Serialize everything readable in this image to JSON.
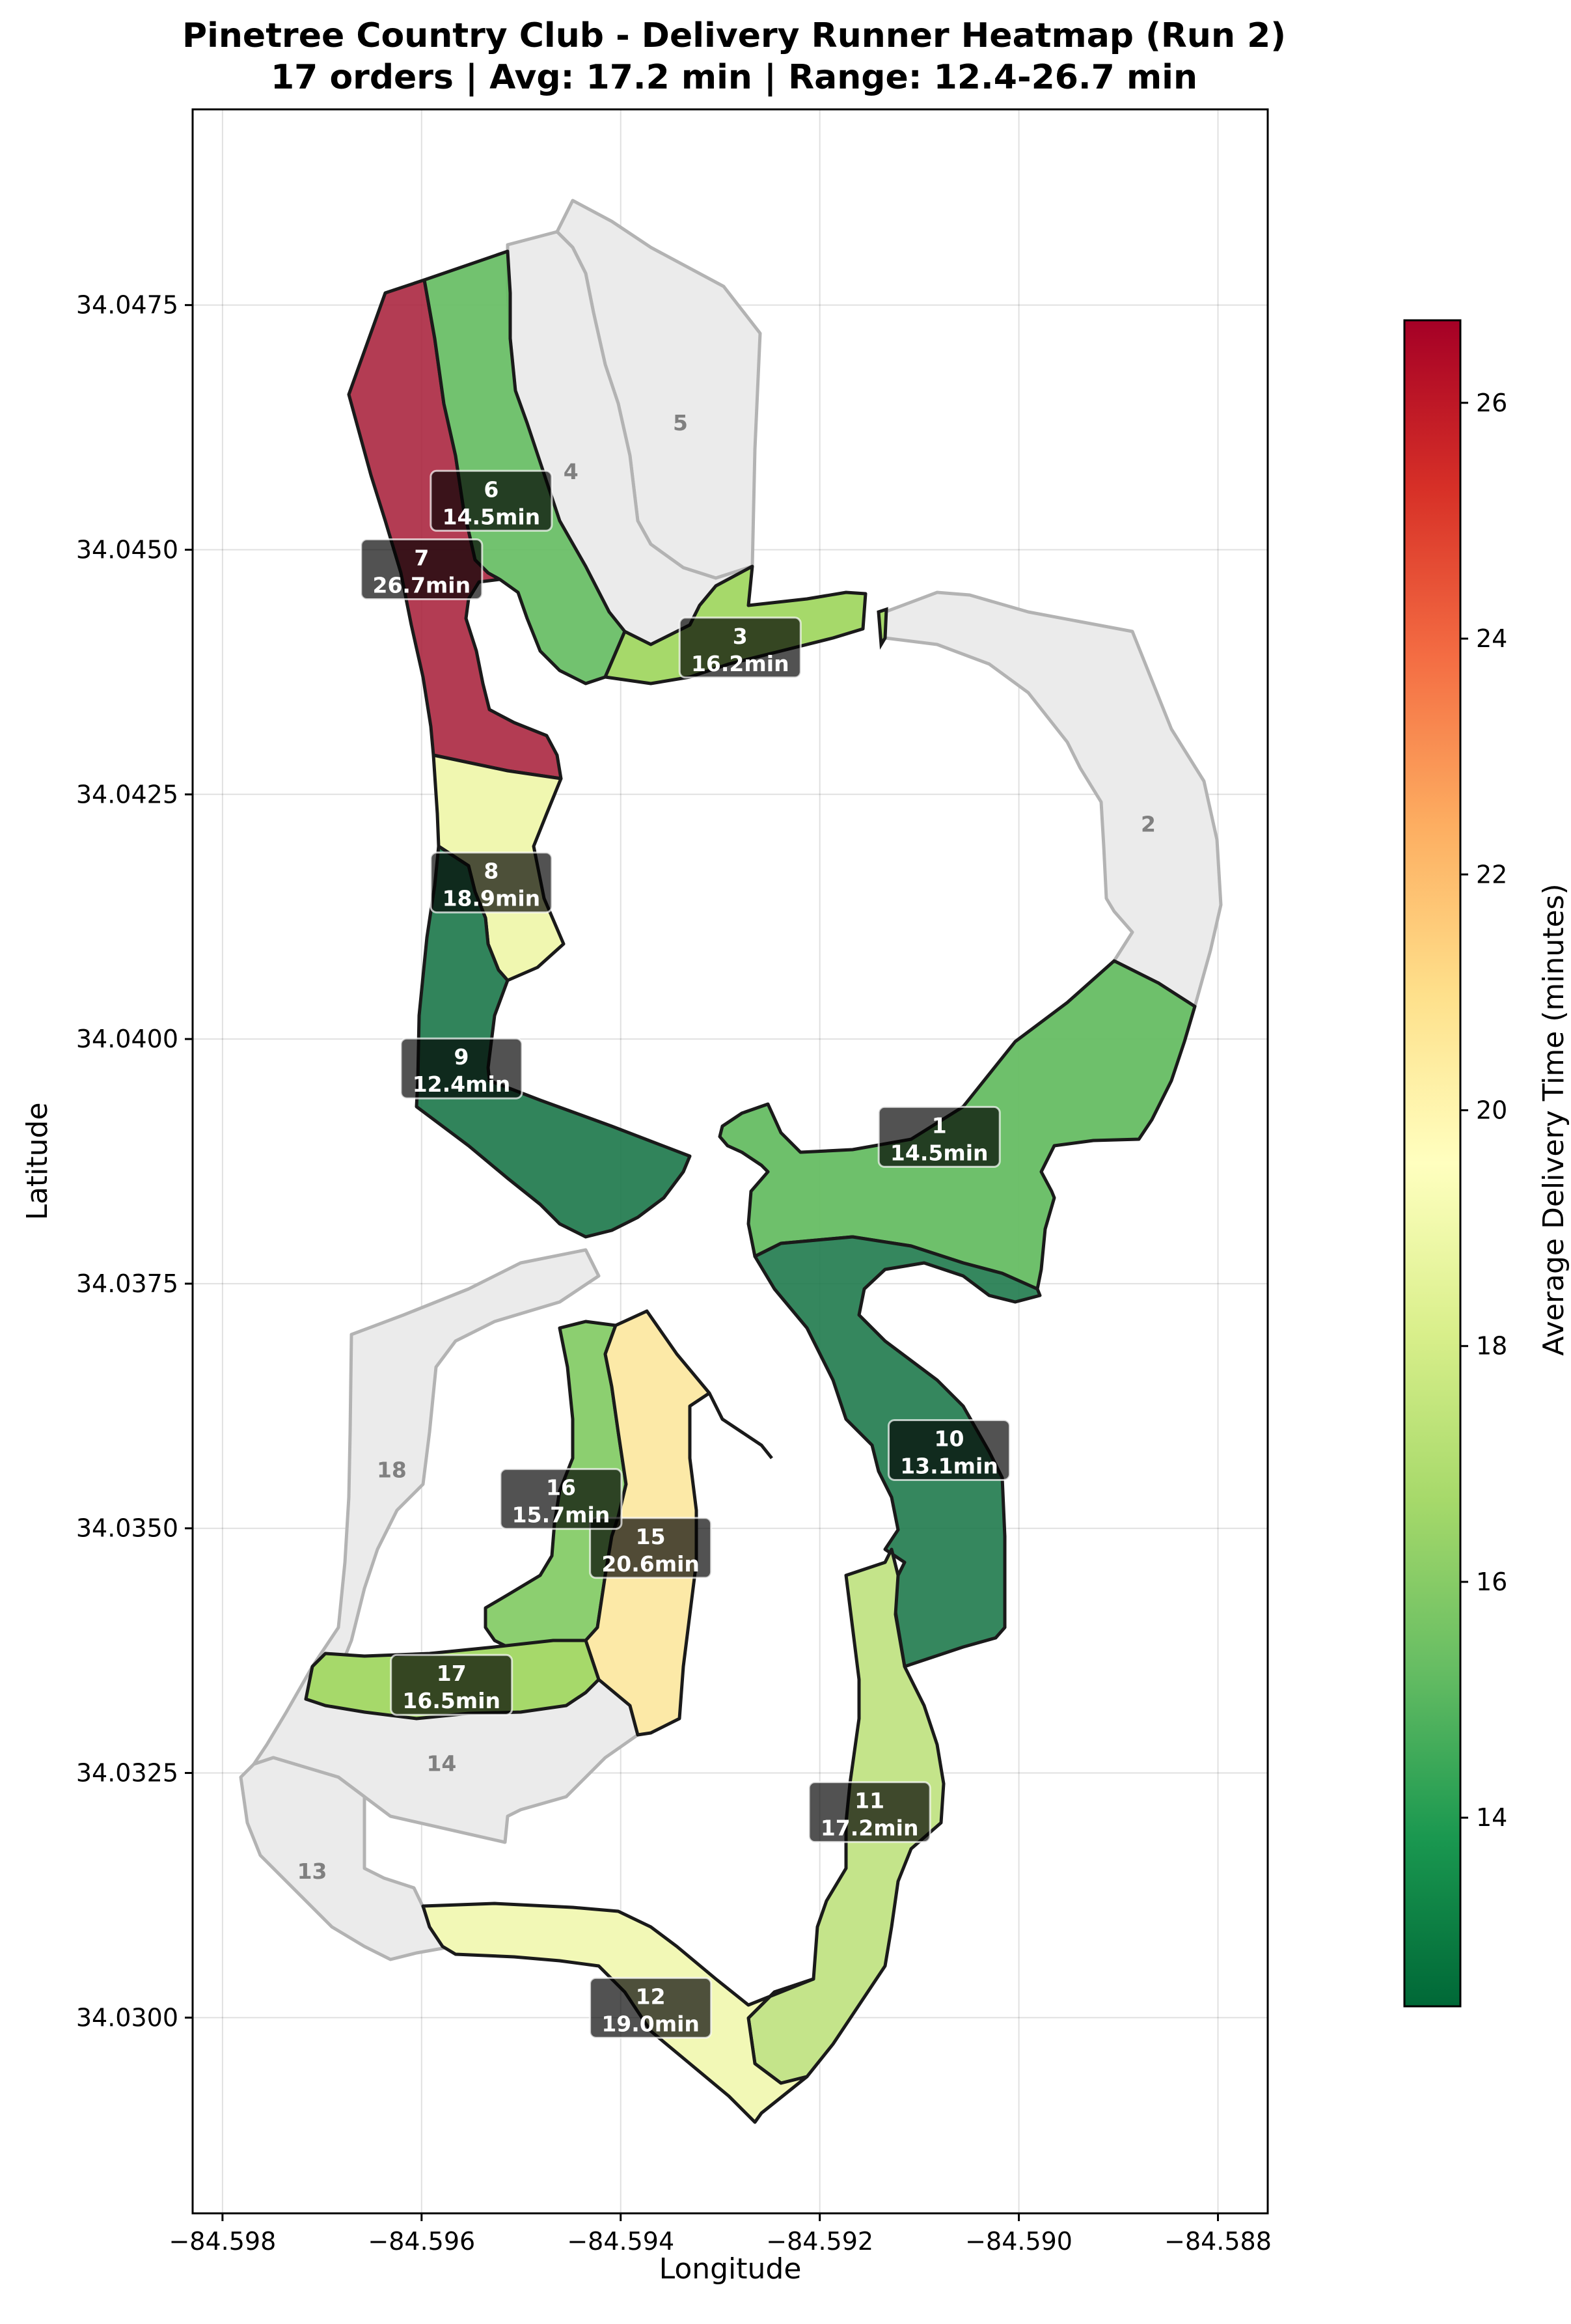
{
  "chart_data": {
    "type": "choropleth-map",
    "title_line1": "Pinetree Country Club - Delivery Runner Heatmap (Run 2)",
    "title_line2": "17 orders | Avg: 17.2 min | Range: 12.4-26.7 min",
    "xlabel": "Longitude",
    "ylabel": "Latitude",
    "colorbar_label": "Average Delivery Time (minutes)",
    "xlim": [
      -84.5983,
      -84.5875
    ],
    "ylim": [
      34.028,
      34.0495
    ],
    "x_ticks": [
      -84.598,
      -84.596,
      -84.594,
      -84.592,
      -84.59,
      -84.588
    ],
    "x_tick_labels": [
      "−84.598",
      "−84.596",
      "−84.594",
      "−84.592",
      "−84.590",
      "−84.588"
    ],
    "y_ticks": [
      34.03,
      34.0325,
      34.035,
      34.0375,
      34.04,
      34.0425,
      34.045,
      34.0475
    ],
    "y_tick_labels": [
      "34.0300",
      "34.0325",
      "34.0350",
      "34.0375",
      "34.0400",
      "34.0425",
      "34.0450",
      "34.0475"
    ],
    "colorbar_range": [
      12.4,
      26.7
    ],
    "colorbar_ticks": [
      14,
      16,
      18,
      20,
      22,
      24,
      26
    ],
    "colorbar_tick_labels": [
      "14",
      "16",
      "18",
      "20",
      "22",
      "24",
      "26"
    ],
    "colormap": "RdYlGn_r",
    "no_data_color": "#ebebeb",
    "grid": true,
    "holes": [
      {
        "hole": "1",
        "avg_min": 14.5,
        "label": "14.5min",
        "label_pos": [
          -84.5908,
          34.039
        ]
      },
      {
        "hole": "2",
        "avg_min": null,
        "label": "",
        "label_pos": [
          -84.5887,
          34.0422
        ]
      },
      {
        "hole": "3",
        "avg_min": 16.2,
        "label": "16.2min",
        "label_pos": [
          -84.5928,
          34.044
        ]
      },
      {
        "hole": "4",
        "avg_min": null,
        "label": "",
        "label_pos": [
          -84.5945,
          34.0458
        ]
      },
      {
        "hole": "5",
        "avg_min": null,
        "label": "",
        "label_pos": [
          -84.5934,
          34.0463
        ]
      },
      {
        "hole": "6",
        "avg_min": 14.5,
        "label": "14.5min",
        "label_pos": [
          -84.5953,
          34.0455
        ]
      },
      {
        "hole": "7",
        "avg_min": 26.7,
        "label": "26.7min",
        "label_pos": [
          -84.596,
          34.0448
        ]
      },
      {
        "hole": "8",
        "avg_min": 18.9,
        "label": "18.9min",
        "label_pos": [
          -84.5953,
          34.0416
        ]
      },
      {
        "hole": "9",
        "avg_min": 12.4,
        "label": "12.4min",
        "label_pos": [
          -84.5956,
          34.0397
        ]
      },
      {
        "hole": "10",
        "avg_min": 13.1,
        "label": "13.1min",
        "label_pos": [
          -84.5907,
          34.0358
        ]
      },
      {
        "hole": "11",
        "avg_min": 17.2,
        "label": "17.2min",
        "label_pos": [
          -84.5915,
          34.0321
        ]
      },
      {
        "hole": "12",
        "avg_min": 19.0,
        "label": "19.0min",
        "label_pos": [
          -84.5937,
          34.0301
        ]
      },
      {
        "hole": "13",
        "avg_min": null,
        "label": "",
        "label_pos": [
          -84.5971,
          34.0315
        ]
      },
      {
        "hole": "14",
        "avg_min": null,
        "label": "",
        "label_pos": [
          -84.5958,
          34.0326
        ]
      },
      {
        "hole": "15",
        "avg_min": 20.6,
        "label": "20.6min",
        "label_pos": [
          -84.5937,
          34.0348
        ]
      },
      {
        "hole": "16",
        "avg_min": 15.7,
        "label": "15.7min",
        "label_pos": [
          -84.5946,
          34.0353
        ]
      },
      {
        "hole": "17",
        "avg_min": 16.5,
        "label": "16.5min",
        "label_pos": [
          -84.5957,
          34.0334
        ]
      },
      {
        "hole": "18",
        "avg_min": null,
        "label": "",
        "label_pos": [
          -84.5963,
          34.0356
        ]
      }
    ]
  }
}
